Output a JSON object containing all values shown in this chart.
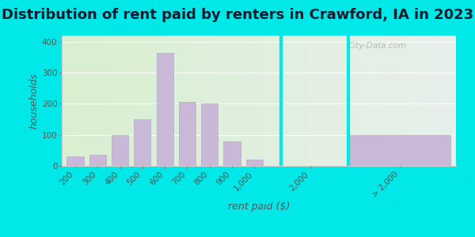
{
  "title": "Distribution of rent paid by renters in Crawford, IA in 2023",
  "xlabel": "rent paid ($)",
  "ylabel": "households",
  "background_outer": "#00e8e8",
  "bar_color": "#c9b8d8",
  "bar_edgecolor": "#b8a8cc",
  "categories": [
    "200",
    "300",
    "400",
    "500",
    "600",
    "700",
    "800",
    "900",
    "1,000"
  ],
  "values": [
    30,
    35,
    100,
    150,
    365,
    205,
    200,
    80,
    20
  ],
  "cat_2000": "2,000",
  "val_2000": 0,
  "cat_gt2000": "> 2,000",
  "val_gt2000": 100,
  "ylim": [
    0,
    420
  ],
  "yticks": [
    0,
    100,
    200,
    300,
    400
  ],
  "title_fontsize": 13,
  "axis_label_fontsize": 9,
  "tick_fontsize": 7.5,
  "watermark_text": "City-Data.com"
}
